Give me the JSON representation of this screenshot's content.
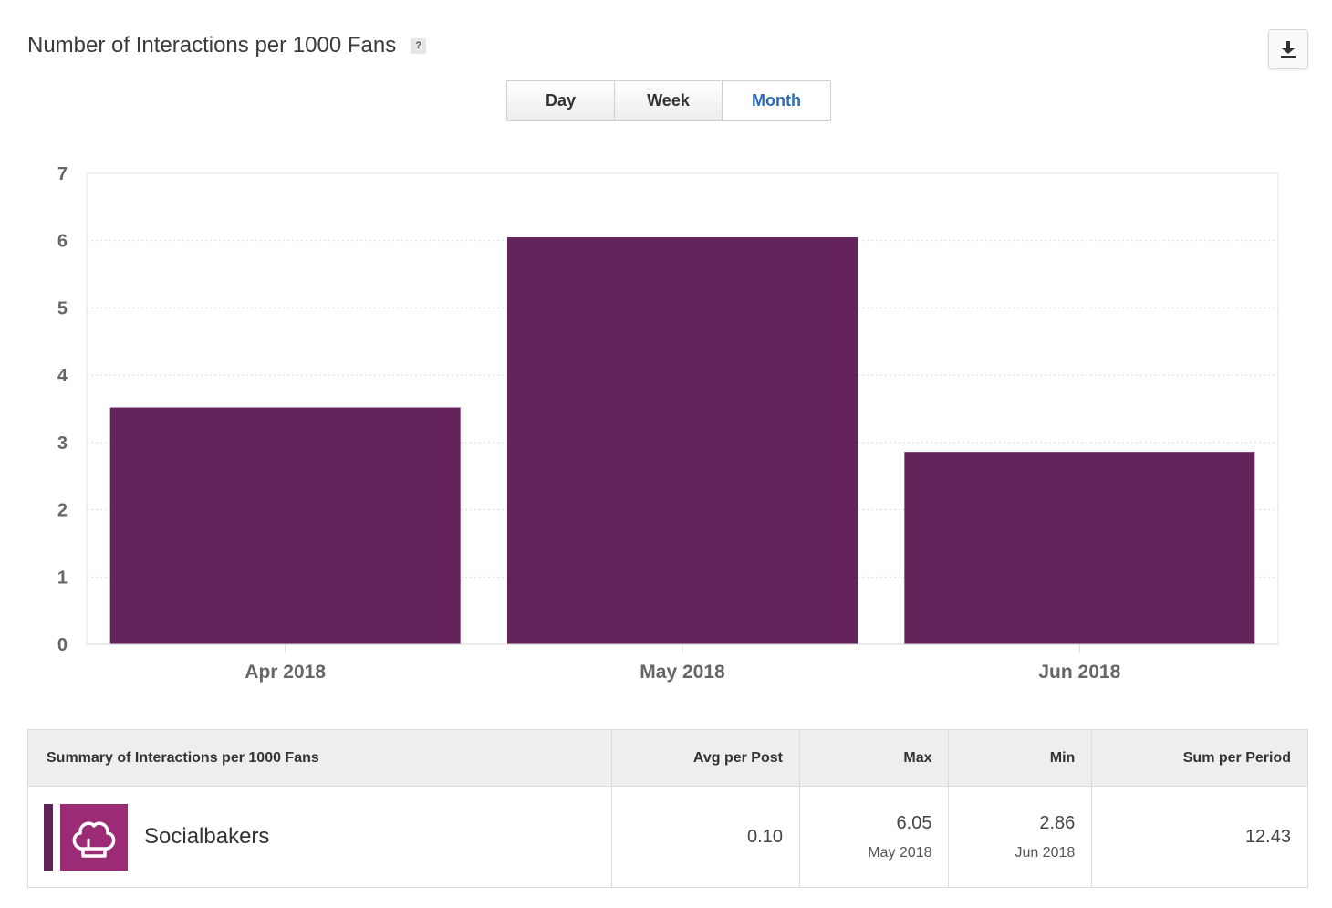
{
  "header": {
    "title": "Number of Interactions per 1000 Fans",
    "help_label": "?",
    "download_icon": "download-icon"
  },
  "tabs": [
    {
      "label": "Day",
      "active": false
    },
    {
      "label": "Week",
      "active": false
    },
    {
      "label": "Month",
      "active": true
    }
  ],
  "chart_data": {
    "type": "bar",
    "title": "Number of Interactions per 1000 Fans",
    "categories": [
      "Apr 2018",
      "May 2018",
      "Jun 2018"
    ],
    "values": [
      3.52,
      6.05,
      2.86
    ],
    "ylim": [
      0,
      7
    ],
    "yticks": [
      0,
      1,
      2,
      3,
      4,
      5,
      6,
      7
    ],
    "xlabel": "",
    "ylabel": "",
    "grid": true,
    "bar_color": "#64235b",
    "grid_color": "#d9d9d9",
    "tick_color": "#666666"
  },
  "summary": {
    "headers": {
      "name": "Summary of Interactions per 1000 Fans",
      "avg": "Avg per Post",
      "max": "Max",
      "min": "Min",
      "sum": "Sum per Period"
    },
    "row": {
      "profile": "Socialbakers",
      "profile_icon": "chef-hat-icon",
      "avg": "0.10",
      "max": "6.05",
      "max_date": "May 2018",
      "min": "2.86",
      "min_date": "Jun 2018",
      "sum": "12.43"
    }
  }
}
